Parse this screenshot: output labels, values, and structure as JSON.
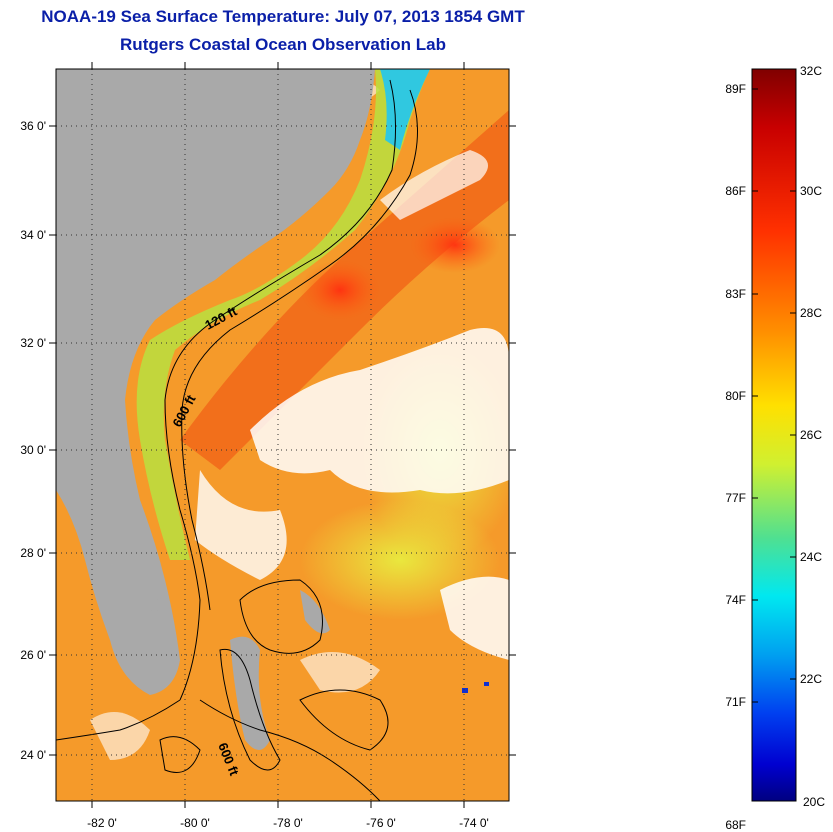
{
  "title": "NOAA-19 Sea Surface Temperature:  July 07, 2013 1854 GMT",
  "subtitle": "Rutgers Coastal Ocean Observation Lab",
  "map": {
    "lat_labels": [
      "36 0'",
      "34 0'",
      "32 0'",
      "30 0'",
      "28 0'",
      "26 0'",
      "24 0'"
    ],
    "lon_labels": [
      "-82 0'",
      "-80 0'",
      "-78 0'",
      "-76 0'",
      "-74 0'"
    ],
    "contour_labels": [
      "120 ft",
      "600 ft",
      "600 ft"
    ]
  },
  "colorbar": {
    "fahrenheit_labels": [
      "89F",
      "86F",
      "83F",
      "80F",
      "77F",
      "74F",
      "71F",
      "68F"
    ],
    "celsius_labels": [
      "32C",
      "30C",
      "28C",
      "26C",
      "24C",
      "22C",
      "20C"
    ]
  },
  "colors": {
    "title": "#0a1fa8",
    "land": "#aaaaaa",
    "warm": "#f06010",
    "cool": "#30d0d0"
  }
}
